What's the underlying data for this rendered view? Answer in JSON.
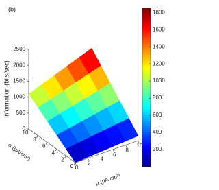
{
  "chart_data": {
    "type": "surface",
    "panel_label": "(b)",
    "zlabel": "information (bits/sec)",
    "xlabel": "σ (μA/cm²)",
    "ylabel": "μ (μA/cm²)",
    "x": [
      0,
      2,
      4,
      6,
      8,
      10
    ],
    "y": [
      0,
      2,
      4,
      6,
      8,
      10
    ],
    "z": [
      [
        0,
        30,
        60,
        90,
        120,
        150
      ],
      [
        220,
        274,
        328,
        382,
        436,
        490
      ],
      [
        440,
        518,
        596,
        674,
        752,
        830
      ],
      [
        660,
        762,
        864,
        966,
        1068,
        1170
      ],
      [
        880,
        1006,
        1132,
        1258,
        1384,
        1510
      ],
      [
        1100,
        1250,
        1400,
        1550,
        1700,
        1850
      ]
    ],
    "xlim": [
      0,
      10
    ],
    "ylim": [
      0,
      10
    ],
    "zlim": [
      0,
      2500
    ],
    "xticks": [
      0,
      2,
      4,
      6,
      8,
      10
    ],
    "yticks": [
      0,
      2,
      4,
      6,
      8,
      10
    ],
    "zticks": [
      0,
      500,
      1000,
      1500,
      2000,
      2500
    ],
    "colormap": "jet",
    "clim": [
      0,
      1850
    ],
    "colorbar_ticks": [
      200,
      400,
      600,
      800,
      1000,
      1200,
      1400,
      1600,
      1800
    ]
  }
}
